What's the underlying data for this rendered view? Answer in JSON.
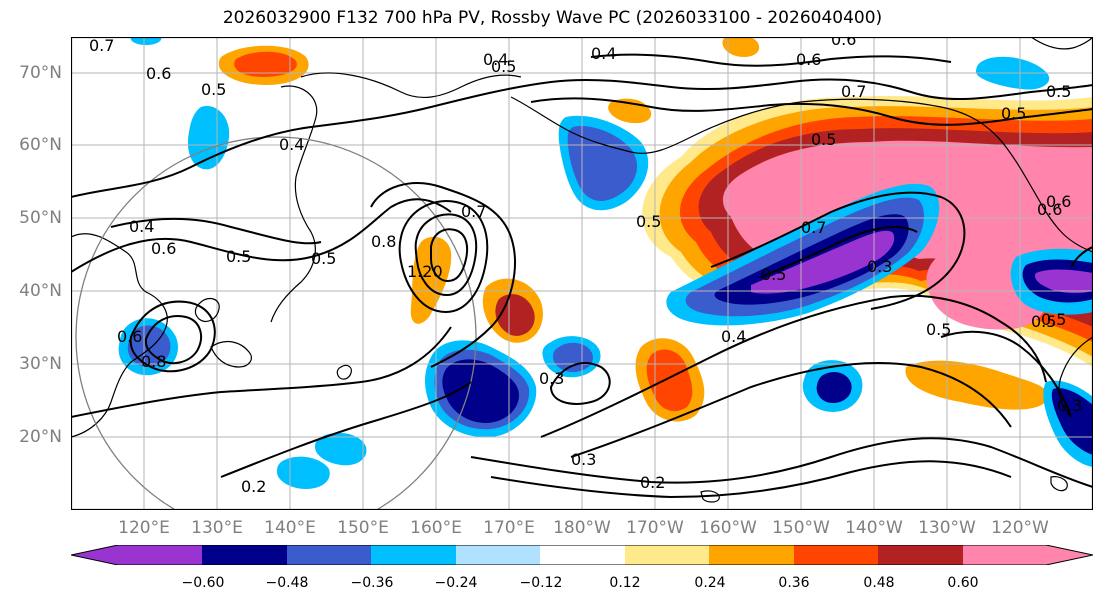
{
  "title": "2026032900 F132 700 hPa PV, Rossby Wave PC (2026033100 - 2026040400)",
  "lat_labels": [
    "70°N",
    "60°N",
    "50°N",
    "40°N",
    "30°N",
    "20°N"
  ],
  "lon_labels": [
    "120°E",
    "130°E",
    "140°E",
    "150°E",
    "160°E",
    "170°E",
    "180°W",
    "170°W",
    "160°W",
    "150°W",
    "140°W",
    "130°W",
    "120°W"
  ],
  "colorbar": {
    "tick_labels": [
      "−0.60",
      "−0.48",
      "−0.36",
      "−0.24",
      "−0.12",
      "0.12",
      "0.24",
      "0.36",
      "0.48",
      "0.60"
    ],
    "colors": [
      "#9a34d1",
      "#00008b",
      "#3a5ccc",
      "#00bfff",
      "#b0e2ff",
      "#ffffff",
      "#ffe98a",
      "#ffa500",
      "#ff4500",
      "#b22222",
      "#ff85ad"
    ]
  },
  "contour_labels": [
    "0.7",
    "0.6",
    "0.5",
    "0.4",
    "0.6",
    "0.6",
    "0.4",
    "0.5",
    "0.6",
    "0.7",
    "0.5",
    "0.5",
    "0.4",
    "0.4",
    "0.6",
    "0.5",
    "0.5",
    "0.8",
    "1.20",
    "0.7",
    "0.6",
    "0.8",
    "0.5",
    "0.3",
    "0.5",
    "0.7",
    "0.5",
    "0.3",
    "0.4",
    "0.5",
    "0.3",
    "0.3",
    "0.2",
    "0.2",
    "0.6",
    "0.5",
    "0.5"
  ],
  "map_frame_color": "#000000"
}
